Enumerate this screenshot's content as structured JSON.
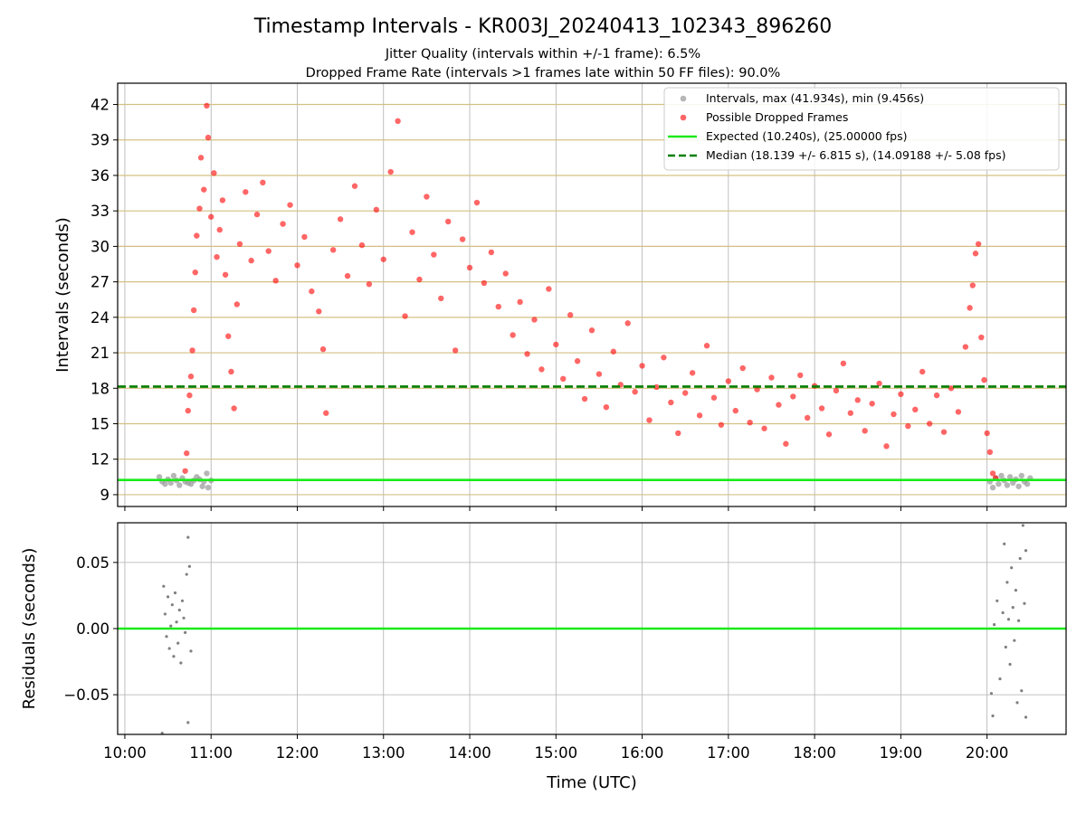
{
  "chart_data": [
    {
      "type": "scatter",
      "title": "Timestamp Intervals - KR003J_20240413_102343_896260",
      "subtitles": [
        "Jitter Quality (intervals within +/-1 frame): 6.5%",
        "Dropped Frame Rate (intervals >1 frames late within 50 FF files): 90.0%"
      ],
      "ylabel": "Intervals (seconds)",
      "xlim": [
        "09:55",
        "20:55"
      ],
      "ylim": [
        8.0,
        43.8
      ],
      "yticks": [
        9,
        12,
        15,
        18,
        21,
        24,
        27,
        30,
        33,
        36,
        39,
        42
      ],
      "ygrid_color": "#d4c083",
      "xgrid": true,
      "legend_position": "top-right",
      "series": [
        {
          "name": "Intervals, max (41.934s), min (9.456s)",
          "kind": "scatter",
          "color": "#9e9e9e",
          "points": [
            [
              "10:24",
              10.5
            ],
            [
              "10:26",
              10.1
            ],
            [
              "10:28",
              9.9
            ],
            [
              "10:30",
              10.3
            ],
            [
              "10:32",
              10.0
            ],
            [
              "10:34",
              10.6
            ],
            [
              "10:36",
              10.2
            ],
            [
              "10:38",
              9.8
            ],
            [
              "10:40",
              10.4
            ],
            [
              "10:42",
              10.1
            ],
            [
              "10:44",
              10.0
            ],
            [
              "10:46",
              9.9
            ],
            [
              "10:48",
              10.2
            ],
            [
              "10:50",
              10.5
            ],
            [
              "10:52",
              10.3
            ],
            [
              "10:54",
              9.7
            ],
            [
              "10:55",
              10.1
            ],
            [
              "10:57",
              10.8
            ],
            [
              "10:58",
              9.6
            ],
            [
              "11:00",
              10.2
            ],
            [
              "20:02",
              10.1
            ],
            [
              "20:04",
              9.6
            ],
            [
              "20:06",
              10.4
            ],
            [
              "20:08",
              9.9
            ],
            [
              "20:10",
              10.6
            ],
            [
              "20:12",
              10.2
            ],
            [
              "20:14",
              9.8
            ],
            [
              "20:16",
              10.5
            ],
            [
              "20:18",
              10.0
            ],
            [
              "20:20",
              10.3
            ],
            [
              "20:22",
              9.7
            ],
            [
              "20:24",
              10.6
            ],
            [
              "20:26",
              10.1
            ],
            [
              "20:28",
              9.9
            ],
            [
              "20:30",
              10.4
            ]
          ]
        },
        {
          "name": "Possible Dropped Frames",
          "kind": "scatter",
          "color": "#ff0000",
          "points": [
            [
              "10:42",
              11.0
            ],
            [
              "10:43",
              12.5
            ],
            [
              "10:44",
              16.1
            ],
            [
              "10:45",
              17.4
            ],
            [
              "10:46",
              19.0
            ],
            [
              "10:47",
              21.2
            ],
            [
              "10:48",
              24.6
            ],
            [
              "10:49",
              27.8
            ],
            [
              "10:50",
              30.9
            ],
            [
              "10:52",
              33.2
            ],
            [
              "10:53",
              37.5
            ],
            [
              "10:55",
              34.8
            ],
            [
              "10:57",
              41.9
            ],
            [
              "10:58",
              39.2
            ],
            [
              "11:00",
              32.5
            ],
            [
              "11:02",
              36.2
            ],
            [
              "11:04",
              29.1
            ],
            [
              "11:06",
              31.4
            ],
            [
              "11:08",
              33.9
            ],
            [
              "11:10",
              27.6
            ],
            [
              "11:12",
              22.4
            ],
            [
              "11:14",
              19.4
            ],
            [
              "11:16",
              16.3
            ],
            [
              "11:18",
              25.1
            ],
            [
              "11:20",
              30.2
            ],
            [
              "11:24",
              34.6
            ],
            [
              "11:28",
              28.8
            ],
            [
              "11:32",
              32.7
            ],
            [
              "11:36",
              35.4
            ],
            [
              "11:40",
              29.6
            ],
            [
              "11:45",
              27.1
            ],
            [
              "11:50",
              31.9
            ],
            [
              "11:55",
              33.5
            ],
            [
              "12:00",
              28.4
            ],
            [
              "12:05",
              30.8
            ],
            [
              "12:10",
              26.2
            ],
            [
              "12:15",
              24.5
            ],
            [
              "12:18",
              21.3
            ],
            [
              "12:20",
              15.9
            ],
            [
              "12:25",
              29.7
            ],
            [
              "12:30",
              32.3
            ],
            [
              "12:35",
              27.5
            ],
            [
              "12:40",
              35.1
            ],
            [
              "12:45",
              30.1
            ],
            [
              "12:50",
              26.8
            ],
            [
              "12:55",
              33.1
            ],
            [
              "13:00",
              28.9
            ],
            [
              "13:05",
              36.3
            ],
            [
              "13:10",
              40.6
            ],
            [
              "13:15",
              24.1
            ],
            [
              "13:20",
              31.2
            ],
            [
              "13:25",
              27.2
            ],
            [
              "13:30",
              34.2
            ],
            [
              "13:35",
              29.3
            ],
            [
              "13:40",
              25.6
            ],
            [
              "13:45",
              32.1
            ],
            [
              "13:50",
              21.2
            ],
            [
              "13:55",
              30.6
            ],
            [
              "14:00",
              28.2
            ],
            [
              "14:05",
              33.7
            ],
            [
              "14:10",
              26.9
            ],
            [
              "14:15",
              29.5
            ],
            [
              "14:20",
              24.9
            ],
            [
              "14:25",
              27.7
            ],
            [
              "14:30",
              22.5
            ],
            [
              "14:35",
              25.3
            ],
            [
              "14:40",
              20.9
            ],
            [
              "14:45",
              23.8
            ],
            [
              "14:50",
              19.6
            ],
            [
              "14:55",
              26.4
            ],
            [
              "15:00",
              21.7
            ],
            [
              "15:05",
              18.8
            ],
            [
              "15:10",
              24.2
            ],
            [
              "15:15",
              20.3
            ],
            [
              "15:20",
              17.1
            ],
            [
              "15:25",
              22.9
            ],
            [
              "15:30",
              19.2
            ],
            [
              "15:35",
              16.4
            ],
            [
              "15:40",
              21.1
            ],
            [
              "15:45",
              18.3
            ],
            [
              "15:50",
              23.5
            ],
            [
              "15:55",
              17.7
            ],
            [
              "16:00",
              19.9
            ],
            [
              "16:05",
              15.3
            ],
            [
              "16:10",
              18.1
            ],
            [
              "16:15",
              20.6
            ],
            [
              "16:20",
              16.8
            ],
            [
              "16:25",
              14.2
            ],
            [
              "16:30",
              17.6
            ],
            [
              "16:35",
              19.3
            ],
            [
              "16:40",
              15.7
            ],
            [
              "16:45",
              21.6
            ],
            [
              "16:50",
              17.2
            ],
            [
              "16:55",
              14.9
            ],
            [
              "17:00",
              18.6
            ],
            [
              "17:05",
              16.1
            ],
            [
              "17:10",
              19.7
            ],
            [
              "17:15",
              15.1
            ],
            [
              "17:20",
              17.9
            ],
            [
              "17:25",
              14.6
            ],
            [
              "17:30",
              18.9
            ],
            [
              "17:35",
              16.6
            ],
            [
              "17:40",
              13.3
            ],
            [
              "17:45",
              17.3
            ],
            [
              "17:50",
              19.1
            ],
            [
              "17:55",
              15.5
            ],
            [
              "18:00",
              18.2
            ],
            [
              "18:05",
              16.3
            ],
            [
              "18:10",
              14.1
            ],
            [
              "18:15",
              17.8
            ],
            [
              "18:20",
              20.1
            ],
            [
              "18:25",
              15.9
            ],
            [
              "18:30",
              17.0
            ],
            [
              "18:35",
              14.4
            ],
            [
              "18:40",
              16.7
            ],
            [
              "18:45",
              18.4
            ],
            [
              "18:50",
              13.1
            ],
            [
              "18:55",
              15.8
            ],
            [
              "19:00",
              17.5
            ],
            [
              "19:05",
              14.8
            ],
            [
              "19:10",
              16.2
            ],
            [
              "19:15",
              19.4
            ],
            [
              "19:20",
              15.0
            ],
            [
              "19:25",
              17.4
            ],
            [
              "19:30",
              14.3
            ],
            [
              "19:35",
              18.0
            ],
            [
              "19:40",
              16.0
            ],
            [
              "19:45",
              21.5
            ],
            [
              "19:48",
              24.8
            ],
            [
              "19:50",
              26.7
            ],
            [
              "19:52",
              29.4
            ],
            [
              "19:54",
              30.2
            ],
            [
              "19:56",
              22.3
            ],
            [
              "19:58",
              18.7
            ],
            [
              "20:00",
              14.2
            ],
            [
              "20:02",
              12.6
            ],
            [
              "20:04",
              10.8
            ],
            [
              "20:06",
              10.4
            ]
          ]
        },
        {
          "name": "Expected (10.240s), (25.00000 fps)",
          "kind": "hline",
          "color": "#1aea1a",
          "value": 10.24
        },
        {
          "name": "Median (18.139 +/- 6.815 s), (14.09188 +/- 5.08 fps)",
          "kind": "hline",
          "color": "#007f00",
          "value": 18.139,
          "dashed": true
        }
      ]
    },
    {
      "type": "scatter",
      "xlabel": "Time (UTC)",
      "ylabel": "Residuals (seconds)",
      "xlim": [
        "09:55",
        "20:55"
      ],
      "ylim": [
        -0.08,
        0.08
      ],
      "yticks": [
        -0.05,
        0.0,
        0.05
      ],
      "ytick_labels": [
        "−0.05",
        "0.00",
        "0.05"
      ],
      "xticks": [
        "10:00",
        "11:00",
        "12:00",
        "13:00",
        "14:00",
        "15:00",
        "16:00",
        "17:00",
        "18:00",
        "19:00",
        "20:00"
      ],
      "grid": true,
      "zero_line_color": "#1aea1a",
      "point_color": "#808080",
      "points": [
        [
          "10:27",
          0.032
        ],
        [
          "10:28",
          0.011
        ],
        [
          "10:29",
          -0.006
        ],
        [
          "10:30",
          0.024
        ],
        [
          "10:31",
          -0.015
        ],
        [
          "10:32",
          0.002
        ],
        [
          "10:33",
          0.018
        ],
        [
          "10:34",
          -0.021
        ],
        [
          "10:35",
          0.027
        ],
        [
          "10:36",
          0.005
        ],
        [
          "10:37",
          -0.011
        ],
        [
          "10:38",
          0.014
        ],
        [
          "10:39",
          -0.026
        ],
        [
          "10:40",
          0.021
        ],
        [
          "10:41",
          0.008
        ],
        [
          "10:42",
          -0.003
        ],
        [
          "10:43",
          0.041
        ],
        [
          "10:44",
          0.069
        ],
        [
          "10:44",
          -0.071
        ],
        [
          "10:45",
          0.047
        ],
        [
          "10:46",
          -0.017
        ],
        [
          "10:26",
          -0.079
        ],
        [
          "20:03",
          -0.049
        ],
        [
          "20:05",
          0.003
        ],
        [
          "20:07",
          0.021
        ],
        [
          "20:09",
          -0.038
        ],
        [
          "20:11",
          0.012
        ],
        [
          "20:12",
          0.064
        ],
        [
          "20:13",
          -0.014
        ],
        [
          "20:14",
          0.035
        ],
        [
          "20:15",
          0.007
        ],
        [
          "20:16",
          -0.027
        ],
        [
          "20:17",
          0.046
        ],
        [
          "20:18",
          0.016
        ],
        [
          "20:19",
          -0.009
        ],
        [
          "20:20",
          0.029
        ],
        [
          "20:21",
          -0.056
        ],
        [
          "20:22",
          0.006
        ],
        [
          "20:23",
          0.053
        ],
        [
          "20:24",
          -0.047
        ],
        [
          "20:25",
          0.078
        ],
        [
          "20:26",
          0.019
        ],
        [
          "20:27",
          -0.067
        ],
        [
          "20:27",
          0.059
        ],
        [
          "20:04",
          -0.066
        ]
      ]
    }
  ]
}
